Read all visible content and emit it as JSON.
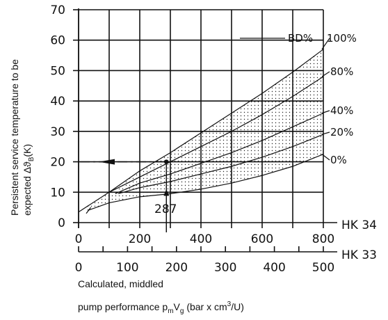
{
  "chart_data": {
    "type": "line",
    "ylabel_line1": "Persistent service temperature to be",
    "ylabel_line2": "expected Δϑ",
    "ylabel_sub": "B",
    "ylabel_unit": "(K)",
    "ylim": [
      0,
      70
    ],
    "yticks": [
      "0",
      "10",
      "20",
      "30",
      "40",
      "50",
      "60",
      "70"
    ],
    "x_primary": {
      "unit_label": "HK 34",
      "range": [
        0,
        800
      ],
      "tick_labels": [
        "0",
        "200",
        "400",
        "600",
        "800"
      ]
    },
    "x_secondary": {
      "unit_label": "HK 33",
      "range": [
        0,
        500
      ],
      "tick_labels": [
        "0",
        "100",
        "200",
        "300",
        "400",
        "500"
      ]
    },
    "xlabel_line1": "Calculated, middled",
    "xlabel_line2": "pump performance p",
    "xlabel_sub1": "m",
    "xlabel_mid": "V",
    "xlabel_sub2": "g",
    "xlabel_tail": " (bar x cm",
    "xlabel_sup": "3",
    "xlabel_end": "/U)",
    "bd_label": "BD%",
    "series": [
      {
        "name": "100%",
        "x": [
          0,
          100,
          200,
          300,
          400,
          500,
          600,
          700,
          800
        ],
        "y": [
          3.5,
          10,
          17,
          23,
          29.5,
          36,
          42.5,
          49.5,
          57
        ]
      },
      {
        "name": "80%",
        "x": [
          100,
          200,
          300,
          400,
          500,
          600,
          700,
          800
        ],
        "y": [
          10,
          15,
          20,
          25,
          30,
          35.5,
          41.5,
          48
        ]
      },
      {
        "name": "40%",
        "x": [
          120,
          200,
          300,
          400,
          500,
          600,
          700,
          800
        ],
        "y": [
          9.5,
          13,
          16,
          19.5,
          23,
          27,
          31.5,
          36
        ]
      },
      {
        "name": "20%",
        "x": [
          130,
          200,
          300,
          400,
          500,
          600,
          700,
          800
        ],
        "y": [
          9.5,
          11.5,
          13.5,
          16,
          18.5,
          21.5,
          25,
          29
        ]
      },
      {
        "name": "0%",
        "x": [
          30,
          100,
          200,
          300,
          400,
          500,
          600,
          700,
          800
        ],
        "y": [
          4,
          6.5,
          8.5,
          9.5,
          11,
          13,
          15.5,
          18.5,
          22.5
        ]
      }
    ],
    "example": {
      "label": "287",
      "x": 287,
      "y": 20
    }
  }
}
